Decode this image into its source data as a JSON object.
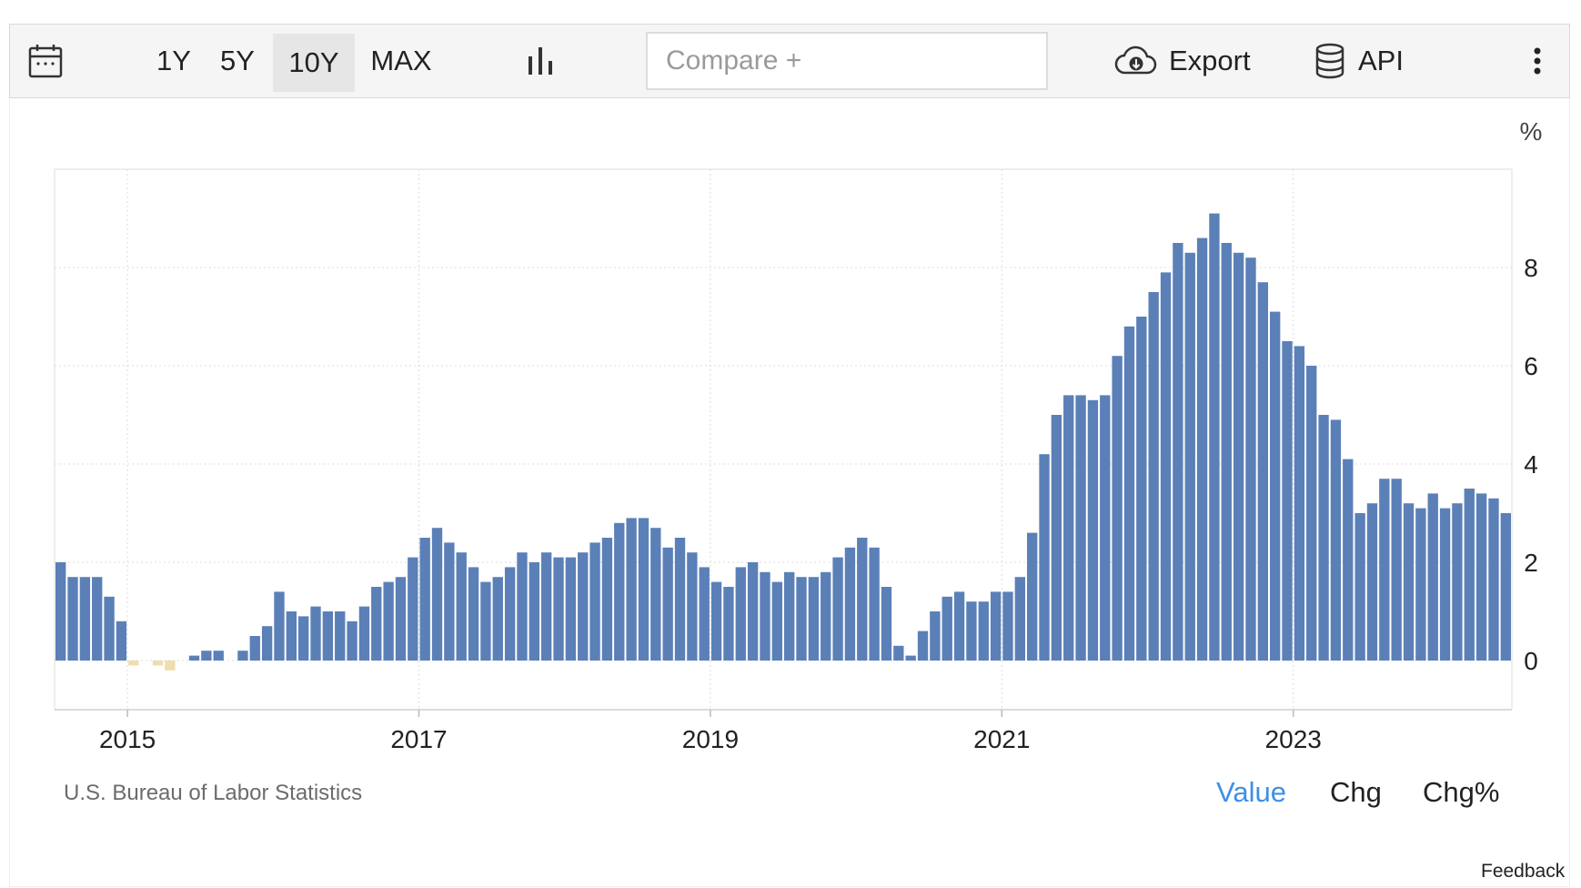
{
  "toolbar": {
    "calendar_icon": "calendar-icon",
    "ranges": [
      "1Y",
      "5Y",
      "10Y",
      "MAX"
    ],
    "active_range": "10Y",
    "chart_type_icon": "bar-chart-icon",
    "compare_placeholder": "Compare +",
    "export_label": "Export",
    "export_icon": "cloud-download-icon",
    "api_label": "API",
    "api_icon": "database-icon",
    "more_icon": "vertical-ellipsis-icon"
  },
  "footer": {
    "source": "U.S. Bureau of Labor Statistics",
    "views": [
      "Value",
      "Chg",
      "Chg%"
    ],
    "active_view": "Value",
    "feedback": "Feedback"
  },
  "colors": {
    "positive_bar": "#5b80b8",
    "negative_bar": "#f0dcae",
    "active_view": "#3d8fe6",
    "grid": "#dcdcdc"
  },
  "chart_data": {
    "type": "bar",
    "unit": "%",
    "x_tick_labels": [
      "2015",
      "2017",
      "2019",
      "2021",
      "2023"
    ],
    "y_tick_labels": [
      "0",
      "2",
      "4",
      "6",
      "8"
    ],
    "ylim": [
      -1,
      10
    ],
    "grid": true,
    "categories": [
      "2014-07",
      "2014-08",
      "2014-09",
      "2014-10",
      "2014-11",
      "2014-12",
      "2015-01",
      "2015-02",
      "2015-03",
      "2015-04",
      "2015-05",
      "2015-06",
      "2015-07",
      "2015-08",
      "2015-09",
      "2015-10",
      "2015-11",
      "2015-12",
      "2016-01",
      "2016-02",
      "2016-03",
      "2016-04",
      "2016-05",
      "2016-06",
      "2016-07",
      "2016-08",
      "2016-09",
      "2016-10",
      "2016-11",
      "2016-12",
      "2017-01",
      "2017-02",
      "2017-03",
      "2017-04",
      "2017-05",
      "2017-06",
      "2017-07",
      "2017-08",
      "2017-09",
      "2017-10",
      "2017-11",
      "2017-12",
      "2018-01",
      "2018-02",
      "2018-03",
      "2018-04",
      "2018-05",
      "2018-06",
      "2018-07",
      "2018-08",
      "2018-09",
      "2018-10",
      "2018-11",
      "2018-12",
      "2019-01",
      "2019-02",
      "2019-03",
      "2019-04",
      "2019-05",
      "2019-06",
      "2019-07",
      "2019-08",
      "2019-09",
      "2019-10",
      "2019-11",
      "2019-12",
      "2020-01",
      "2020-02",
      "2020-03",
      "2020-04",
      "2020-05",
      "2020-06",
      "2020-07",
      "2020-08",
      "2020-09",
      "2020-10",
      "2020-11",
      "2020-12",
      "2021-01",
      "2021-02",
      "2021-03",
      "2021-04",
      "2021-05",
      "2021-06",
      "2021-07",
      "2021-08",
      "2021-09",
      "2021-10",
      "2021-11",
      "2021-12",
      "2022-01",
      "2022-02",
      "2022-03",
      "2022-04",
      "2022-05",
      "2022-06",
      "2022-07",
      "2022-08",
      "2022-09",
      "2022-10",
      "2022-11",
      "2022-12",
      "2023-01",
      "2023-02",
      "2023-03",
      "2023-04",
      "2023-05",
      "2023-06",
      "2023-07",
      "2023-08",
      "2023-09",
      "2023-10",
      "2023-11",
      "2023-12",
      "2024-01",
      "2024-02",
      "2024-03",
      "2024-04",
      "2024-05",
      "2024-06"
    ],
    "values": [
      2.0,
      1.7,
      1.7,
      1.7,
      1.3,
      0.8,
      -0.1,
      0.0,
      -0.1,
      -0.2,
      0.0,
      0.1,
      0.2,
      0.2,
      0.0,
      0.2,
      0.5,
      0.7,
      1.4,
      1.0,
      0.9,
      1.1,
      1.0,
      1.0,
      0.8,
      1.1,
      1.5,
      1.6,
      1.7,
      2.1,
      2.5,
      2.7,
      2.4,
      2.2,
      1.9,
      1.6,
      1.7,
      1.9,
      2.2,
      2.0,
      2.2,
      2.1,
      2.1,
      2.2,
      2.4,
      2.5,
      2.8,
      2.9,
      2.9,
      2.7,
      2.3,
      2.5,
      2.2,
      1.9,
      1.6,
      1.5,
      1.9,
      2.0,
      1.8,
      1.6,
      1.8,
      1.7,
      1.7,
      1.8,
      2.1,
      2.3,
      2.5,
      2.3,
      1.5,
      0.3,
      0.1,
      0.6,
      1.0,
      1.3,
      1.4,
      1.2,
      1.2,
      1.4,
      1.4,
      1.7,
      2.6,
      4.2,
      5.0,
      5.4,
      5.4,
      5.3,
      5.4,
      6.2,
      6.8,
      7.0,
      7.5,
      7.9,
      8.5,
      8.3,
      8.6,
      9.1,
      8.5,
      8.3,
      8.2,
      7.7,
      7.1,
      6.5,
      6.4,
      6.0,
      5.0,
      4.9,
      4.1,
      3.0,
      3.2,
      3.7,
      3.7,
      3.2,
      3.1,
      3.4,
      3.1,
      3.2,
      3.5,
      3.4,
      3.3,
      3.0
    ]
  }
}
